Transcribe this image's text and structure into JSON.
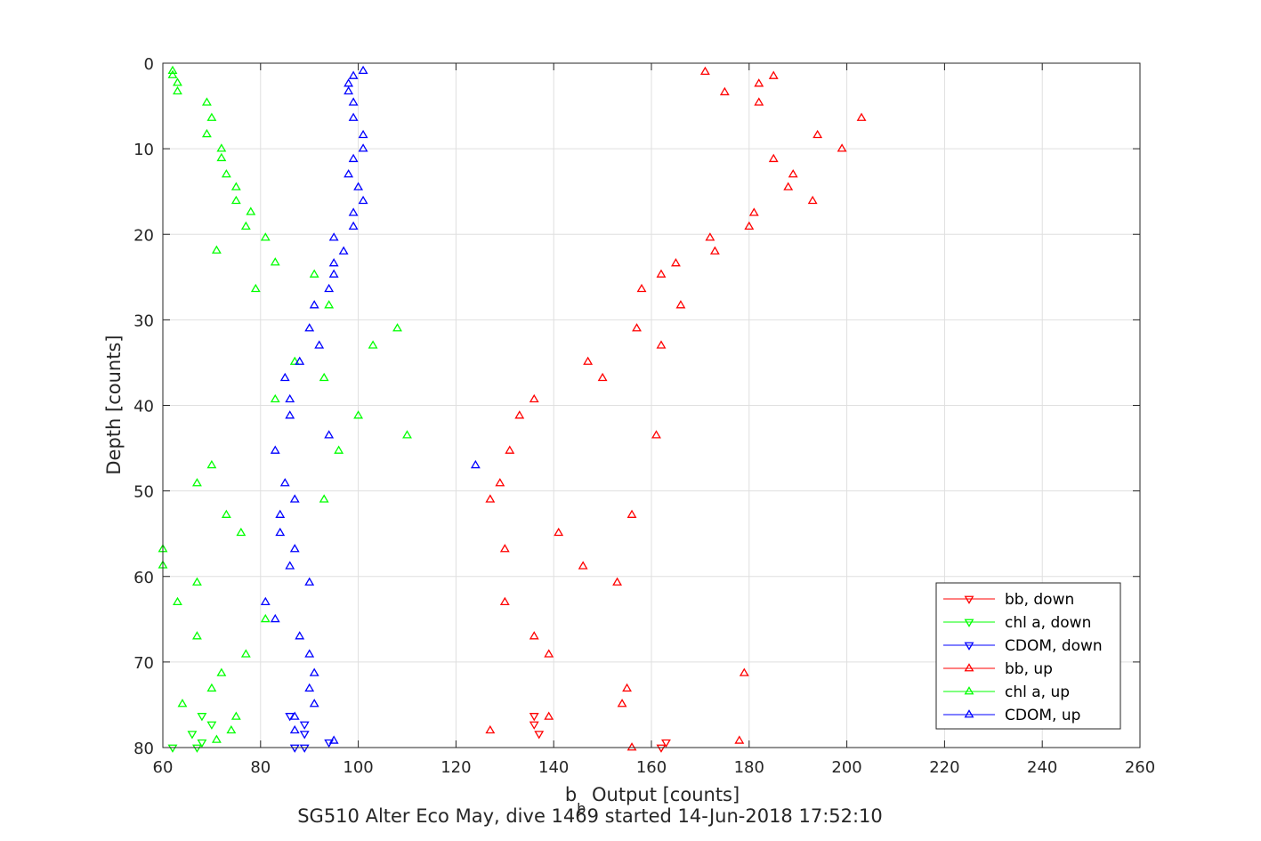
{
  "chart_data": {
    "type": "scatter",
    "title": "",
    "xlabel_main": "b",
    "xlabel_sub": "b",
    "xlabel_rest": " Output [counts]",
    "ylabel": "Depth [counts]",
    "caption": "SG510 Alter Eco May, dive 1469 started 14-Jun-2018 17:52:10",
    "xlim": [
      60,
      260
    ],
    "ylim": [
      0,
      80
    ],
    "y_reversed": true,
    "grid": true,
    "legend_position": "bottom-right",
    "xticks": [
      "60",
      "80",
      "100",
      "120",
      "140",
      "160",
      "180",
      "200",
      "220",
      "240",
      "260"
    ],
    "yticks": [
      "0",
      "10",
      "20",
      "30",
      "40",
      "50",
      "60",
      "70",
      "80"
    ],
    "series": [
      {
        "name": "bb, down",
        "color": "#ff0000",
        "marker": "triangle-down",
        "points": [
          [
            136,
            76.3
          ],
          [
            136,
            77.3
          ],
          [
            137,
            78.4
          ],
          [
            163,
            79.4
          ],
          [
            162,
            80
          ]
        ]
      },
      {
        "name": "chl a, down",
        "color": "#00ff00",
        "marker": "triangle-down",
        "points": [
          [
            68,
            76.3
          ],
          [
            70,
            77.3
          ],
          [
            66,
            78.4
          ],
          [
            68,
            79.4
          ],
          [
            67,
            80
          ],
          [
            62,
            80
          ]
        ]
      },
      {
        "name": "CDOM, down",
        "color": "#0000ff",
        "marker": "triangle-down",
        "points": [
          [
            86,
            76.3
          ],
          [
            89,
            77.3
          ],
          [
            89,
            78.4
          ],
          [
            94,
            79.4
          ],
          [
            89,
            80
          ],
          [
            87,
            80
          ]
        ]
      },
      {
        "name": "bb, up",
        "color": "#ff0000",
        "marker": "triangle-up",
        "points": [
          [
            171,
            1
          ],
          [
            185,
            1.5
          ],
          [
            182,
            2.4
          ],
          [
            175,
            3.4
          ],
          [
            182,
            4.6
          ],
          [
            203,
            6.4
          ],
          [
            194,
            8.4
          ],
          [
            199,
            10
          ],
          [
            185,
            11.2
          ],
          [
            189,
            13
          ],
          [
            188,
            14.5
          ],
          [
            193,
            16.1
          ],
          [
            181,
            17.5
          ],
          [
            180,
            19.1
          ],
          [
            172,
            20.4
          ],
          [
            173,
            22
          ],
          [
            165,
            23.4
          ],
          [
            162,
            24.7
          ],
          [
            158,
            26.4
          ],
          [
            166,
            28.3
          ],
          [
            157,
            31
          ],
          [
            162,
            33
          ],
          [
            147,
            34.9
          ],
          [
            150,
            36.8
          ],
          [
            136,
            39.3
          ],
          [
            133,
            41.2
          ],
          [
            161,
            43.5
          ],
          [
            131,
            45.3
          ],
          [
            129,
            49.1
          ],
          [
            127,
            51
          ],
          [
            156,
            52.8
          ],
          [
            141,
            54.9
          ],
          [
            130,
            56.8
          ],
          [
            146,
            58.8
          ],
          [
            153,
            60.7
          ],
          [
            130,
            63
          ],
          [
            136,
            67
          ],
          [
            139,
            69.1
          ],
          [
            179,
            71.3
          ],
          [
            155,
            73.1
          ],
          [
            154,
            74.9
          ],
          [
            139,
            76.4
          ],
          [
            127,
            78
          ],
          [
            178,
            79.2
          ],
          [
            156,
            80
          ]
        ]
      },
      {
        "name": "chl a, up",
        "color": "#00ff00",
        "marker": "triangle-up",
        "points": [
          [
            62,
            0.9
          ],
          [
            62,
            1.4
          ],
          [
            63,
            2.3
          ],
          [
            63,
            3.3
          ],
          [
            69,
            4.6
          ],
          [
            70,
            6.4
          ],
          [
            69,
            8.3
          ],
          [
            72,
            10
          ],
          [
            72,
            11.1
          ],
          [
            73,
            13
          ],
          [
            75,
            14.5
          ],
          [
            75,
            16.1
          ],
          [
            78,
            17.4
          ],
          [
            77,
            19.1
          ],
          [
            81,
            20.4
          ],
          [
            71,
            21.9
          ],
          [
            83,
            23.3
          ],
          [
            91,
            24.7
          ],
          [
            79,
            26.4
          ],
          [
            94,
            28.3
          ],
          [
            108,
            31
          ],
          [
            103,
            33
          ],
          [
            87,
            34.9
          ],
          [
            93,
            36.8
          ],
          [
            83,
            39.3
          ],
          [
            100,
            41.2
          ],
          [
            110,
            43.5
          ],
          [
            96,
            45.3
          ],
          [
            70,
            47
          ],
          [
            67,
            49.1
          ],
          [
            93,
            51
          ],
          [
            73,
            52.8
          ],
          [
            76,
            54.9
          ],
          [
            60,
            56.8
          ],
          [
            60,
            58.7
          ],
          [
            67,
            60.7
          ],
          [
            63,
            63
          ],
          [
            81,
            65
          ],
          [
            67,
            67
          ],
          [
            77,
            69.1
          ],
          [
            72,
            71.3
          ],
          [
            70,
            73.1
          ],
          [
            64,
            74.9
          ],
          [
            75,
            76.4
          ],
          [
            74,
            78
          ],
          [
            71,
            79.1
          ]
        ]
      },
      {
        "name": "CDOM, up",
        "color": "#0000ff",
        "marker": "triangle-up",
        "points": [
          [
            101,
            0.9
          ],
          [
            99,
            1.5
          ],
          [
            98,
            2.4
          ],
          [
            98,
            3.3
          ],
          [
            99,
            4.6
          ],
          [
            99,
            6.4
          ],
          [
            101,
            8.4
          ],
          [
            101,
            10
          ],
          [
            99,
            11.2
          ],
          [
            98,
            13
          ],
          [
            100,
            14.5
          ],
          [
            101,
            16.1
          ],
          [
            99,
            17.5
          ],
          [
            99,
            19.1
          ],
          [
            95,
            20.4
          ],
          [
            97,
            22
          ],
          [
            95,
            23.4
          ],
          [
            95,
            24.7
          ],
          [
            94,
            26.4
          ],
          [
            91,
            28.3
          ],
          [
            90,
            31
          ],
          [
            92,
            33
          ],
          [
            88,
            34.9
          ],
          [
            85,
            36.8
          ],
          [
            86,
            39.3
          ],
          [
            86,
            41.2
          ],
          [
            94,
            43.5
          ],
          [
            83,
            45.3
          ],
          [
            124,
            47
          ],
          [
            85,
            49.1
          ],
          [
            87,
            51
          ],
          [
            84,
            52.8
          ],
          [
            84,
            54.9
          ],
          [
            87,
            56.8
          ],
          [
            86,
            58.8
          ],
          [
            90,
            60.7
          ],
          [
            81,
            63
          ],
          [
            83,
            65
          ],
          [
            88,
            67
          ],
          [
            90,
            69.1
          ],
          [
            91,
            71.3
          ],
          [
            90,
            73.1
          ],
          [
            91,
            74.9
          ],
          [
            87,
            76.4
          ],
          [
            87,
            78
          ],
          [
            95,
            79.2
          ]
        ]
      }
    ]
  }
}
